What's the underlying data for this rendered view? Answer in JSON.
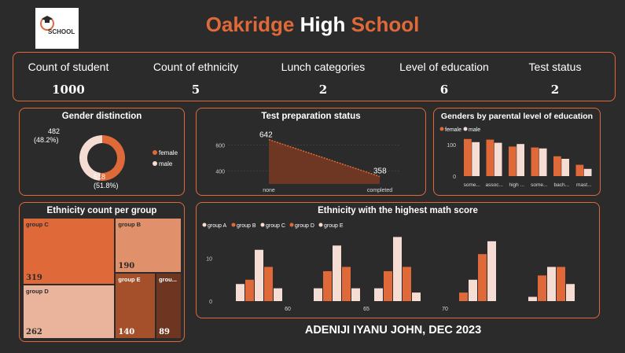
{
  "header": {
    "logo_text": "SCHOOL",
    "title_part1": "Oakridge",
    "title_part2": "High",
    "title_part3": "School"
  },
  "kpis": [
    {
      "label": "Count of student",
      "value": "1000"
    },
    {
      "label": "Count of ethnicity",
      "value": "5"
    },
    {
      "label": "Lunch categories",
      "value": "2"
    },
    {
      "label": "Level of education",
      "value": "6"
    },
    {
      "label": "Test status",
      "value": "2"
    }
  ],
  "footer": "ADENIJI IYANU JOHN, DEC 2023",
  "colors": {
    "female": "#e0693a",
    "male": "#f5ddd3",
    "accent": "#e0693a"
  },
  "chart_data": [
    {
      "id": "gender",
      "type": "pie",
      "title": "Gender distinction",
      "labels": [
        "female",
        "male"
      ],
      "values": [
        518,
        482
      ],
      "data_labels": [
        "518\n(51.8%)",
        "482\n(48.2%)"
      ],
      "legend": "right"
    },
    {
      "id": "testprep",
      "type": "area",
      "title": "Test preparation status",
      "categories": [
        "none",
        "completed"
      ],
      "values": [
        642,
        358
      ],
      "y_ticks": [
        "400",
        "600"
      ],
      "ylim": [
        300,
        700
      ]
    },
    {
      "id": "parental",
      "type": "bar",
      "title": "Genders by parental level of education",
      "categories": [
        "some...",
        "assoc...",
        "high ...",
        "some...",
        "bach...",
        "mast..."
      ],
      "series": [
        {
          "name": "female",
          "values": [
            118,
            116,
            94,
            91,
            63,
            36
          ]
        },
        {
          "name": "male",
          "values": [
            108,
            106,
            102,
            88,
            55,
            23
          ]
        }
      ],
      "y_ticks": [
        "0",
        "100"
      ],
      "ylim": [
        0,
        125
      ],
      "legend": "top-left"
    },
    {
      "id": "treemap",
      "type": "treemap",
      "title": "Ethnicity count per group",
      "items": [
        {
          "name": "group C",
          "value": 319
        },
        {
          "name": "group D",
          "value": 262
        },
        {
          "name": "group B",
          "value": 190
        },
        {
          "name": "group E",
          "value": 140
        },
        {
          "name": "grou...",
          "value": 89
        }
      ]
    },
    {
      "id": "math",
      "type": "bar",
      "title": "Ethnicity with the highest math score",
      "groups": 5,
      "x_tick_labels": [
        "60",
        "65",
        "70"
      ],
      "series": [
        {
          "name": "group A",
          "values": [
            4,
            3,
            3,
            0,
            1
          ]
        },
        {
          "name": "group B",
          "values": [
            5,
            7,
            7,
            2,
            6
          ]
        },
        {
          "name": "group C",
          "values": [
            12,
            13,
            15,
            5,
            8
          ]
        },
        {
          "name": "group D",
          "values": [
            8,
            8,
            8,
            11,
            8
          ]
        },
        {
          "name": "group E",
          "values": [
            3,
            3,
            2,
            14,
            4
          ]
        }
      ],
      "y_ticks": [
        "0",
        "10"
      ],
      "ylim": [
        0,
        16
      ],
      "legend": "top-left"
    }
  ]
}
